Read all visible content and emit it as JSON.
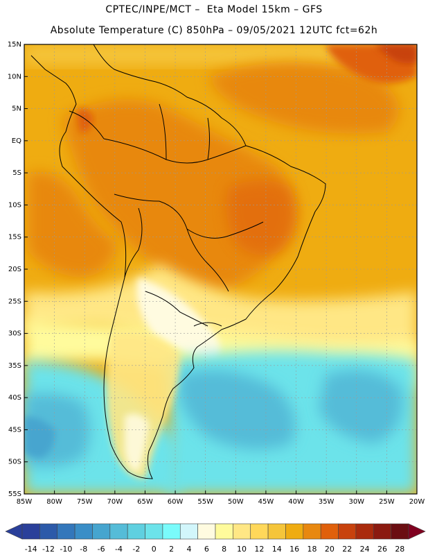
{
  "header": {
    "title_line1": "CPTEC/INPE/MCT –  Eta Model 15km – GFS",
    "title_line2": "Absolute Temperature (C) 850hPa – 09/05/2021 12UTC fct=62h"
  },
  "map": {
    "lat_labels": [
      "15N",
      "10N",
      "5N",
      "EQ",
      "5S",
      "10S",
      "15S",
      "20S",
      "25S",
      "30S",
      "35S",
      "40S",
      "45S",
      "50S",
      "55S"
    ],
    "lon_labels": [
      "85W",
      "80W",
      "75W",
      "70W",
      "65W",
      "60W",
      "55W",
      "50W",
      "45W",
      "40W",
      "35W",
      "30W",
      "25W",
      "20W"
    ],
    "lat_range": [
      15,
      -55
    ],
    "lon_range": [
      -85,
      -20
    ]
  },
  "colorbar": {
    "ticks": [
      "-14",
      "-12",
      "-10",
      "-8",
      "-6",
      "-4",
      "-2",
      "0",
      "2",
      "4",
      "6",
      "8",
      "10",
      "12",
      "14",
      "16",
      "18",
      "20",
      "22",
      "24",
      "26",
      "28"
    ],
    "colors": [
      "#2a3f9a",
      "#2c5aa9",
      "#3377bb",
      "#3a8ec7",
      "#46a5cf",
      "#55bcd8",
      "#5fd0e0",
      "#6ce3ea",
      "#7afbfb",
      "#d2f6fb",
      "#fffbe0",
      "#fffb9c",
      "#ffe785",
      "#ffd85a",
      "#f5c53a",
      "#efac11",
      "#e88810",
      "#e0600b",
      "#c8420d",
      "#aa2b0d",
      "#8b1a10",
      "#6b0e12"
    ]
  }
}
